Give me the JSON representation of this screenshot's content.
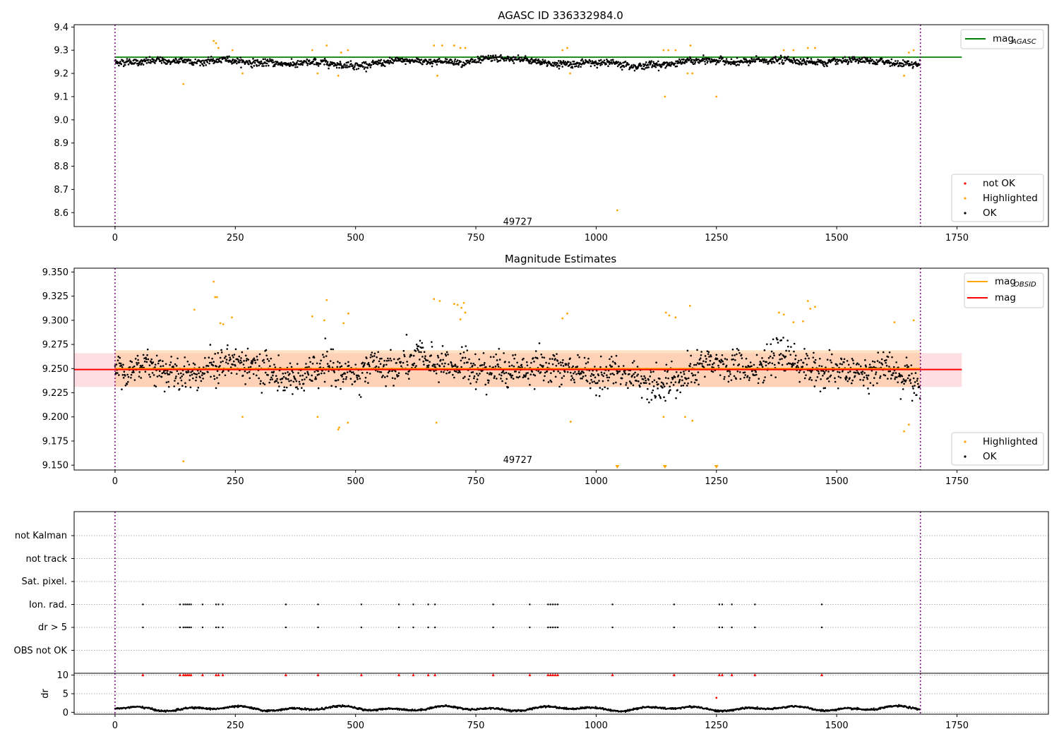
{
  "chart_data": [
    {
      "id": "agasc",
      "type": "scatter",
      "title": "AGASC ID 336332984.0",
      "xlim": [
        -85,
        1940
      ],
      "ylim": [
        8.54,
        9.41
      ],
      "xticks": [
        0,
        250,
        500,
        750,
        1000,
        1250,
        1500,
        1750
      ],
      "yticks": [
        8.6,
        8.7,
        8.8,
        8.9,
        9.0,
        9.1,
        9.2,
        9.3,
        9.4
      ],
      "ytick_labels": [
        "8.6",
        "8.7",
        "8.8",
        "8.9",
        "9.0",
        "9.1",
        "9.2",
        "9.3",
        "9.4"
      ],
      "obs_boundaries": [
        0,
        1674
      ],
      "obs_label": {
        "text": "49727",
        "x": 837,
        "y": 8.56
      },
      "hlines": [
        {
          "name": "mag",
          "subscript": "AGASC",
          "y": 9.27,
          "x0": 0,
          "x1": 1760,
          "color": "#008000"
        }
      ],
      "line_legend": [
        {
          "name": "mag",
          "subscript": "AGASC",
          "color": "#008000"
        }
      ],
      "scatter_legend": [
        {
          "label": "not OK",
          "color": "#ff0000"
        },
        {
          "label": "Highlighted",
          "color": "#ffa500"
        },
        {
          "label": "OK",
          "color": "#000000"
        }
      ],
      "n_points": 1674,
      "series": [
        {
          "name": "OK",
          "color": "#000000",
          "baseline": 9.248,
          "spread": 0.012
        },
        {
          "name": "Highlighted",
          "color": "#ffa500",
          "points": [
            [
              142,
              9.154
            ],
            [
              205,
              9.34
            ],
            [
              210,
              9.33
            ],
            [
              215,
              9.31
            ],
            [
              244,
              9.3
            ],
            [
              265,
              9.2
            ],
            [
              410,
              9.3
            ],
            [
              421,
              9.2
            ],
            [
              440,
              9.32
            ],
            [
              464,
              9.19
            ],
            [
              470,
              9.29
            ],
            [
              484,
              9.3
            ],
            [
              663,
              9.32
            ],
            [
              670,
              9.19
            ],
            [
              680,
              9.32
            ],
            [
              705,
              9.32
            ],
            [
              718,
              9.31
            ],
            [
              728,
              9.31
            ],
            [
              930,
              9.3
            ],
            [
              940,
              9.31
            ],
            [
              946,
              9.2
            ],
            [
              1044,
              8.61
            ],
            [
              1140,
              9.3
            ],
            [
              1143,
              9.1
            ],
            [
              1150,
              9.3
            ],
            [
              1165,
              9.3
            ],
            [
              1190,
              9.2
            ],
            [
              1196,
              9.32
            ],
            [
              1200,
              9.2
            ],
            [
              1250,
              9.1
            ],
            [
              1390,
              9.3
            ],
            [
              1410,
              9.3
            ],
            [
              1440,
              9.31
            ],
            [
              1455,
              9.31
            ],
            [
              1640,
              9.19
            ],
            [
              1650,
              9.29
            ],
            [
              1660,
              9.3
            ]
          ]
        }
      ]
    },
    {
      "id": "estimates",
      "type": "scatter",
      "title": "Magnitude Estimates",
      "xlim": [
        -85,
        1940
      ],
      "ylim": [
        9.145,
        9.354
      ],
      "xticks": [
        0,
        250,
        500,
        750,
        1000,
        1250,
        1500,
        1750
      ],
      "yticks": [
        9.15,
        9.175,
        9.2,
        9.225,
        9.25,
        9.275,
        9.3,
        9.325,
        9.35
      ],
      "ytick_labels": [
        "9.150",
        "9.175",
        "9.200",
        "9.225",
        "9.250",
        "9.275",
        "9.300",
        "9.325",
        "9.350"
      ],
      "obs_boundaries": [
        0,
        1674
      ],
      "obs_label": {
        "text": "49727",
        "x": 837,
        "y": 9.148
      },
      "bands": [
        {
          "name": "mag",
          "y0": 9.231,
          "y1": 9.266,
          "x0": -85,
          "x1": 1760,
          "color": "#ffb6c1"
        },
        {
          "name": "mag OBSID",
          "y0": 9.231,
          "y1": 9.269,
          "x0": 0,
          "x1": 1674,
          "color": "#ffc38a"
        }
      ],
      "hlines": [
        {
          "name": "mag",
          "subscript": "OBSID",
          "y": 9.25,
          "x0": 0,
          "x1": 1674,
          "color": "#ffa500"
        },
        {
          "name": "mag",
          "subscript": "",
          "y": 9.249,
          "x0": -85,
          "x1": 1760,
          "color": "#ff0000"
        }
      ],
      "line_legend": [
        {
          "name": "mag",
          "subscript": "OBSID",
          "color": "#ffa500"
        },
        {
          "name": "mag",
          "subscript": "",
          "color": "#ff0000"
        }
      ],
      "scatter_legend": [
        {
          "label": "Highlighted",
          "color": "#ffa500"
        },
        {
          "label": "OK",
          "color": "#000000"
        }
      ],
      "n_points": 1674,
      "series": [
        {
          "name": "OK",
          "color": "#000000",
          "baseline": 9.248,
          "spread": 0.014
        },
        {
          "name": "Highlighted",
          "color": "#ffa500",
          "points": [
            [
              142,
              9.154
            ],
            [
              165,
              9.311
            ],
            [
              205,
              9.34
            ],
            [
              208,
              9.324
            ],
            [
              212,
              9.324
            ],
            [
              219,
              9.297
            ],
            [
              225,
              9.296
            ],
            [
              243,
              9.303
            ],
            [
              265,
              9.2
            ],
            [
              410,
              9.304
            ],
            [
              421,
              9.2
            ],
            [
              435,
              9.3
            ],
            [
              440,
              9.321
            ],
            [
              464,
              9.187
            ],
            [
              466,
              9.189
            ],
            [
              475,
              9.297
            ],
            [
              484,
              9.194
            ],
            [
              485,
              9.307
            ],
            [
              663,
              9.322
            ],
            [
              668,
              9.194
            ],
            [
              675,
              9.32
            ],
            [
              705,
              9.317
            ],
            [
              712,
              9.316
            ],
            [
              718,
              9.301
            ],
            [
              720,
              9.313
            ],
            [
              725,
              9.318
            ],
            [
              728,
              9.308
            ],
            [
              930,
              9.302
            ],
            [
              940,
              9.307
            ],
            [
              947,
              9.195
            ],
            [
              1140,
              9.2
            ],
            [
              1145,
              9.308
            ],
            [
              1152,
              9.305
            ],
            [
              1165,
              9.303
            ],
            [
              1185,
              9.2
            ],
            [
              1195,
              9.315
            ],
            [
              1200,
              9.196
            ],
            [
              1380,
              9.308
            ],
            [
              1390,
              9.306
            ],
            [
              1410,
              9.298
            ],
            [
              1430,
              9.299
            ],
            [
              1440,
              9.32
            ],
            [
              1445,
              9.312
            ],
            [
              1455,
              9.314
            ],
            [
              1620,
              9.298
            ],
            [
              1640,
              9.185
            ],
            [
              1650,
              9.192
            ],
            [
              1660,
              9.3
            ]
          ]
        }
      ],
      "markers_below": {
        "color": "#ffa500",
        "x": [
          1044,
          1143,
          1250
        ]
      }
    },
    {
      "id": "flags",
      "type": "scatter",
      "title": "",
      "xlim": [
        -85,
        1940
      ],
      "categories": [
        "not Kalman",
        "not track",
        "Sat. pixel.",
        "Ion. rad.",
        "dr > 5",
        "OBS not OK"
      ],
      "obs_boundaries": [
        0,
        1674
      ],
      "flag_points": {
        "Ion. rad.": [
          58,
          135,
          142,
          146,
          150,
          154,
          158,
          182,
          210,
          215,
          224,
          355,
          422,
          512,
          590,
          620,
          651,
          665,
          786,
          862,
          900,
          905,
          910,
          915,
          920,
          1034,
          1162,
          1256,
          1262,
          1282,
          1330,
          1469
        ],
        "dr > 5": [
          58,
          135,
          142,
          146,
          150,
          154,
          158,
          182,
          210,
          215,
          224,
          355,
          422,
          512,
          590,
          620,
          651,
          665,
          786,
          862,
          900,
          905,
          910,
          915,
          920,
          1034,
          1162,
          1256,
          1262,
          1282,
          1330,
          1469
        ]
      }
    },
    {
      "id": "dr",
      "type": "line",
      "title": "",
      "ylabel": "dr",
      "xlim": [
        -85,
        1940
      ],
      "ylim": [
        -0.5,
        10.5
      ],
      "xticks": [
        0,
        250,
        500,
        750,
        1000,
        1250,
        1500,
        1750
      ],
      "yticks": [
        0,
        5,
        10
      ],
      "ytick_labels": [
        "0",
        "5",
        "10"
      ],
      "obs_boundaries": [
        0,
        1674
      ],
      "clipped_markers": {
        "color": "#ff0000",
        "y": 10,
        "x": [
          58,
          135,
          142,
          146,
          150,
          154,
          158,
          182,
          210,
          215,
          224,
          355,
          422,
          512,
          590,
          620,
          651,
          665,
          786,
          862,
          900,
          905,
          910,
          915,
          920,
          1034,
          1162,
          1256,
          1262,
          1282,
          1330,
          1469
        ]
      },
      "extra_points": [
        {
          "x": 1250,
          "y": 3.9,
          "color": "#ff0000"
        }
      ],
      "series": [
        {
          "name": "dr",
          "color": "#000000",
          "baseline": 1.0,
          "spread": 0.7
        }
      ]
    }
  ]
}
